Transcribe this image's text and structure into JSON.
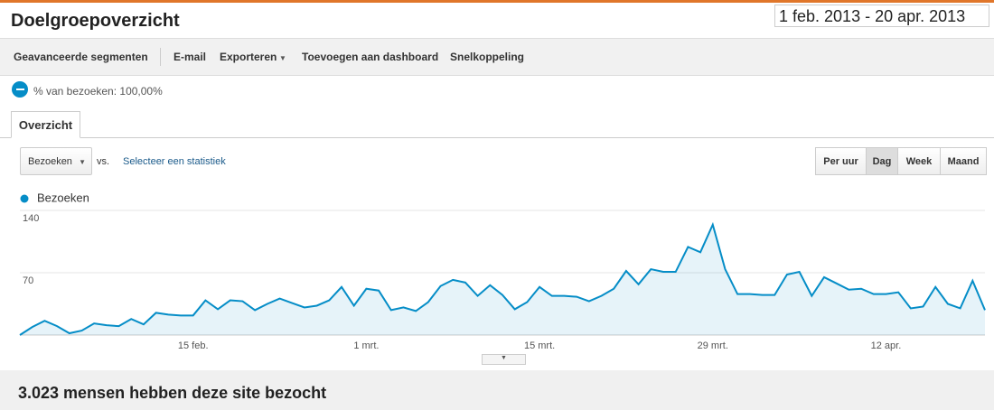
{
  "header": {
    "title": "Doelgroepoverzicht",
    "date_range": "1 feb. 2013 - 20 apr. 2013"
  },
  "toolbar": [
    "Geavanceerde segmenten",
    "E-mail",
    "Exporteren",
    "Toevoegen aan dashboard",
    "Snelkoppeling"
  ],
  "segment": "% van bezoeken: 100,00%",
  "tab": "Overzicht",
  "controls": {
    "metric": "Bezoeken",
    "vs": "vs.",
    "select": "Selecteer een statistiek",
    "periods": [
      "Per uur",
      "Dag",
      "Week",
      "Maand"
    ],
    "selected_period": 1
  },
  "chart_data": {
    "type": "line",
    "area": true,
    "grid": true,
    "categories": [
      null,
      null,
      null,
      null,
      null,
      null,
      null,
      null,
      null,
      null,
      null,
      null,
      null,
      null,
      "15 feb.",
      null,
      null,
      null,
      null,
      null,
      null,
      null,
      null,
      null,
      null,
      null,
      null,
      null,
      "1 mrt.",
      null,
      null,
      null,
      null,
      null,
      null,
      null,
      null,
      null,
      null,
      null,
      null,
      null,
      "15 mrt.",
      null,
      null,
      null,
      null,
      null,
      null,
      null,
      null,
      null,
      null,
      null,
      null,
      null,
      "29 mrt.",
      null,
      null,
      null,
      null,
      null,
      null,
      null,
      null,
      null,
      null,
      null,
      null,
      null,
      "12 apr.",
      null,
      null,
      null,
      null,
      null,
      null,
      null,
      null
    ],
    "series": [
      {
        "name": "Bezoeken",
        "color": "#058dc7",
        "values": [
          0,
          9,
          16,
          10,
          2,
          5,
          13,
          11,
          10,
          18,
          12,
          25,
          23,
          22,
          22,
          39,
          29,
          39,
          38,
          28,
          35,
          41,
          36,
          31,
          33,
          39,
          54,
          33,
          52,
          50,
          28,
          31,
          27,
          37,
          55,
          62,
          59,
          44,
          56,
          45,
          29,
          37,
          54,
          44,
          44,
          43,
          38,
          44,
          52,
          72,
          57,
          74,
          71,
          71,
          99,
          93,
          124,
          74,
          46,
          46,
          45,
          45,
          68,
          71,
          44,
          65,
          58,
          51,
          52,
          46,
          46,
          48,
          30,
          32,
          54,
          35,
          30,
          61,
          28
        ]
      }
    ],
    "ylim": [
      0,
      140
    ],
    "yticks": [
      70,
      140
    ]
  },
  "summary": "3.023 mensen hebben deze site bezocht"
}
